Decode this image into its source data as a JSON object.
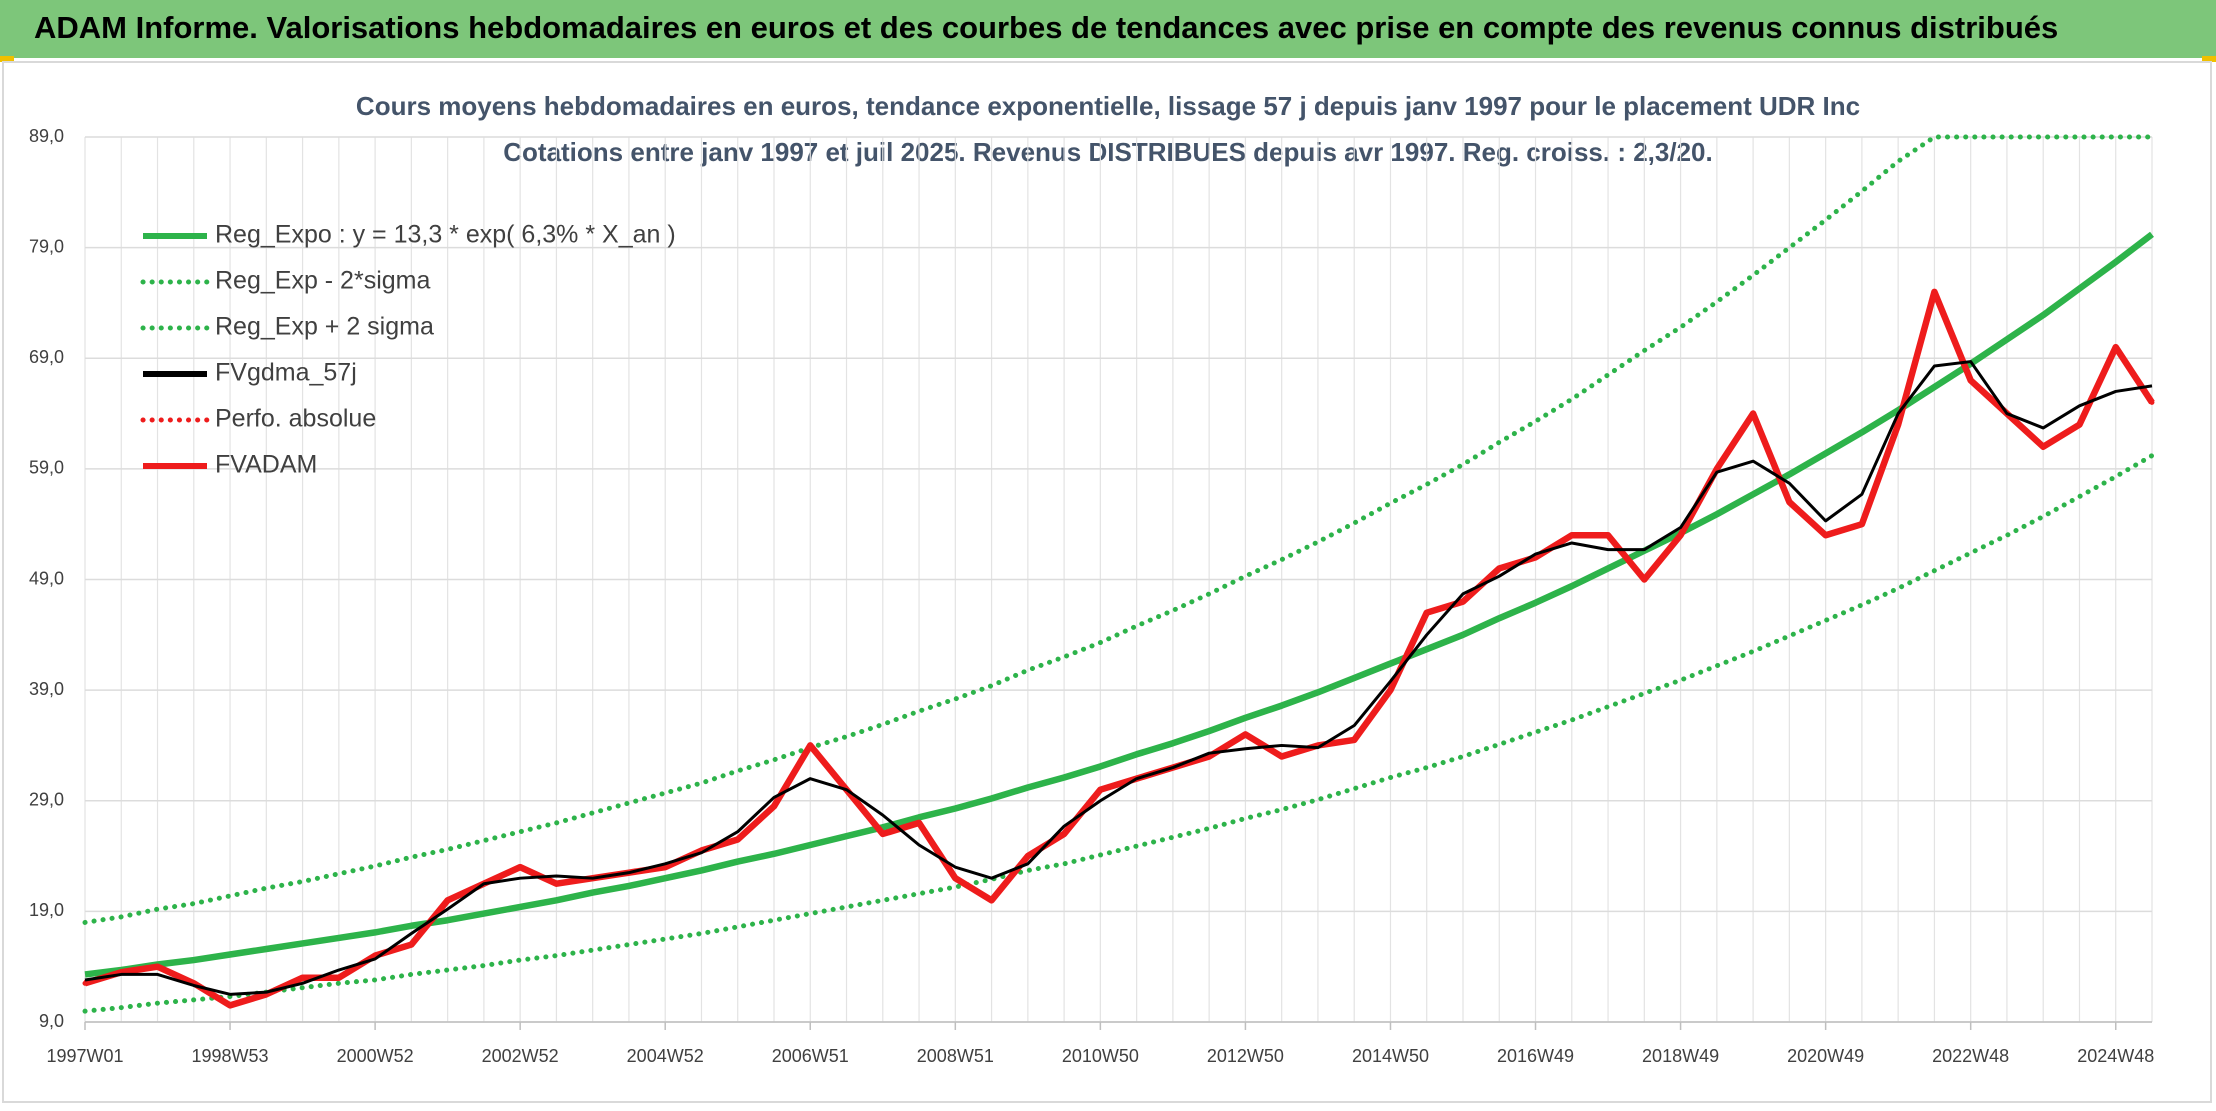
{
  "header": {
    "title": "ADAM Informe. Valorisations hebdomadaires en euros et des courbes de tendances avec prise en compte des revenus connus distribués"
  },
  "chart_data": {
    "type": "line",
    "title": "Cours moyens hebdomadaires en euros, tendance exponentielle, lissage 57 j depuis janv 1997 pour le placement UDR Inc",
    "subtitle": "Cotations entre janv 1997 et juil 2025. Revenus DISTRIBUES depuis avr 1997. Reg. croiss. : 2,3/20.",
    "categories": [
      "1997W01",
      null,
      null,
      null,
      "1998W53",
      null,
      null,
      null,
      "2000W52",
      null,
      null,
      null,
      "2002W52",
      null,
      null,
      null,
      "2004W52",
      null,
      null,
      null,
      "2006W51",
      null,
      null,
      null,
      "2008W51",
      null,
      null,
      null,
      "2010W50",
      null,
      null,
      null,
      "2012W50",
      null,
      null,
      null,
      "2014W50",
      null,
      null,
      null,
      "2016W49",
      null,
      null,
      null,
      "2018W49",
      null,
      null,
      null,
      "2020W49",
      null,
      null,
      null,
      "2022W48",
      null,
      null,
      null,
      "2024W48",
      null
    ],
    "ylim": [
      9,
      89
    ],
    "yticks": [
      {
        "value": 9,
        "label": "9,0"
      },
      {
        "value": 19,
        "label": "19,0"
      },
      {
        "value": 29,
        "label": "29,0"
      },
      {
        "value": 39,
        "label": "39,0"
      },
      {
        "value": 49,
        "label": "49,0"
      },
      {
        "value": 59,
        "label": "59,0"
      },
      {
        "value": 69,
        "label": "69,0"
      },
      {
        "value": 79,
        "label": "79,0"
      },
      {
        "value": 89,
        "label": "89,0"
      }
    ],
    "grid": true,
    "legend": "upper left",
    "series": [
      {
        "name": "Reg_Expo : y = 13,3 * exp( 6,3% *  X_an )",
        "color": "#2db34a",
        "line_style": "solid",
        "values": [
          13.3,
          13.7,
          14.2,
          14.6,
          15.1,
          15.6,
          16.1,
          16.6,
          17.1,
          17.7,
          18.2,
          18.8,
          19.4,
          20.0,
          20.7,
          21.3,
          22.0,
          22.7,
          23.5,
          24.2,
          25.0,
          25.8,
          26.6,
          27.5,
          28.3,
          29.2,
          30.2,
          31.1,
          32.1,
          33.2,
          34.2,
          35.3,
          36.5,
          37.6,
          38.8,
          40.1,
          41.4,
          42.7,
          44.0,
          45.5,
          46.9,
          48.4,
          50.0,
          51.6,
          53.2,
          54.9,
          56.7,
          58.5,
          60.4,
          62.3,
          64.3,
          66.4,
          68.5,
          70.7,
          72.9,
          75.3,
          77.7,
          80.2
        ]
      },
      {
        "name": "Reg_Exp - 2*sigma",
        "color": "#2db34a",
        "line_style": "dotted",
        "values": [
          9.98,
          10.3,
          10.7,
          11.0,
          11.3,
          11.7,
          12.1,
          12.5,
          12.8,
          13.3,
          13.7,
          14.1,
          14.6,
          15.0,
          15.5,
          16.0,
          16.5,
          17.0,
          17.6,
          18.2,
          18.8,
          19.4,
          20.0,
          20.6,
          21.2,
          21.9,
          22.7,
          23.3,
          24.1,
          24.9,
          25.7,
          26.5,
          27.4,
          28.2,
          29.1,
          30.1,
          31.1,
          32.0,
          33.0,
          34.1,
          35.2,
          36.3,
          37.5,
          38.7,
          39.9,
          41.2,
          42.5,
          43.9,
          45.3,
          46.7,
          48.2,
          49.8,
          51.4,
          53.0,
          54.7,
          56.5,
          58.3,
          60.2
        ]
      },
      {
        "name": "Reg_Exp + 2 sigma",
        "color": "#2db34a",
        "line_style": "dotted",
        "values": [
          18.0,
          18.5,
          19.2,
          19.7,
          20.4,
          21.1,
          21.7,
          22.4,
          23.1,
          23.9,
          24.6,
          25.4,
          26.2,
          27.0,
          27.9,
          28.8,
          29.7,
          30.6,
          31.7,
          32.7,
          33.8,
          34.8,
          35.9,
          37.1,
          38.2,
          39.4,
          40.8,
          42.0,
          43.3,
          44.8,
          46.2,
          47.7,
          49.3,
          50.8,
          52.4,
          54.1,
          55.9,
          57.6,
          59.4,
          61.4,
          63.3,
          65.3,
          67.5,
          69.7,
          71.8,
          74.1,
          76.5,
          79.0,
          81.5,
          84.1,
          86.8,
          89,
          89,
          89,
          89,
          89,
          89,
          89
        ]
      },
      {
        "name": "FVgdma_57j",
        "color": "#000000",
        "line_style": "solid",
        "values": [
          12.8,
          13.3,
          13.3,
          12.3,
          11.5,
          11.7,
          12.5,
          13.7,
          14.7,
          17,
          19.2,
          21.5,
          22,
          22.2,
          22,
          22.5,
          23.3,
          24.3,
          26.2,
          29.3,
          31,
          30,
          27.7,
          25,
          23,
          22,
          23.3,
          26.7,
          29,
          31,
          32,
          33.3,
          33.7,
          34,
          33.8,
          35.8,
          39.8,
          44,
          47.7,
          49.3,
          51.3,
          52.3,
          51.7,
          51.7,
          53.7,
          58.7,
          59.7,
          57.7,
          54.3,
          56.7,
          64,
          68.3,
          68.7,
          64,
          62.7,
          64.7,
          66,
          66.5
        ]
      },
      {
        "name": "Perfo. absolue",
        "color": "#ee1c1c",
        "line_style": "dotted",
        "values": [
          12.5,
          13.5,
          14,
          12.5,
          10.5,
          11.5,
          13,
          13,
          15,
          16,
          20,
          21.5,
          23,
          21.5,
          22,
          22.5,
          23,
          24.5,
          25.5,
          28.5,
          34,
          30,
          26,
          27,
          22,
          20,
          24,
          26,
          30,
          31,
          32,
          33,
          35,
          33,
          34,
          34.5,
          39,
          46,
          47,
          50,
          51,
          53,
          53,
          49,
          53,
          59,
          64,
          56,
          53,
          54,
          63,
          75,
          67,
          64,
          61,
          63,
          70,
          65
        ]
      },
      {
        "name": "FVADAM",
        "color": "#ee1c1c",
        "line_style": "solid",
        "values": [
          12.5,
          13.5,
          14,
          12.5,
          10.5,
          11.5,
          13,
          13,
          15,
          16,
          20,
          21.5,
          23,
          21.5,
          22,
          22.5,
          23,
          24.5,
          25.5,
          28.5,
          34,
          30,
          26,
          27,
          22,
          20,
          24,
          26,
          30,
          31,
          32,
          33,
          35,
          33,
          34,
          34.5,
          39,
          46,
          47,
          50,
          51,
          53,
          53,
          49,
          53,
          59,
          64,
          56,
          53,
          54,
          63,
          75,
          67,
          64,
          61,
          63,
          70,
          65
        ]
      }
    ]
  }
}
